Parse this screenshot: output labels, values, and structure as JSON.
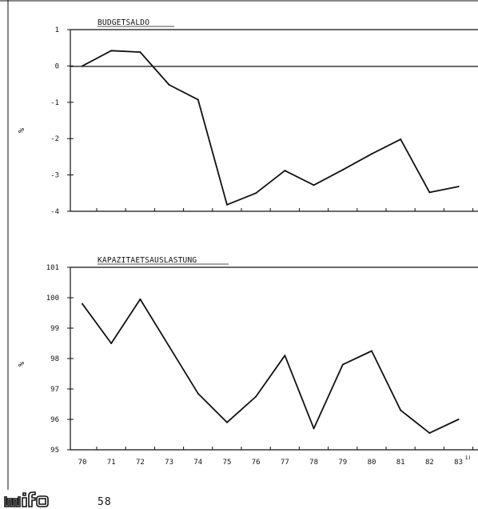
{
  "chart_data": [
    {
      "type": "line",
      "title": "BUDGETSALDO",
      "ylabel": "%",
      "categories": [
        "70",
        "71",
        "72",
        "73",
        "74",
        "75",
        "76",
        "77",
        "78",
        "79",
        "80",
        "81",
        "82",
        "83"
      ],
      "values": [
        0.0,
        0.42,
        0.38,
        -0.52,
        -0.93,
        -3.82,
        -3.5,
        -2.88,
        -3.28,
        -2.86,
        -2.42,
        -2.02,
        -3.48,
        -3.32
      ],
      "yticks": [
        1,
        0,
        -1,
        -2,
        -3,
        -4
      ],
      "ytick_labels": [
        "1",
        "0",
        "-1",
        "-2",
        "-3",
        "-4"
      ],
      "ylim": [
        -4,
        1
      ],
      "zero_line": true
    },
    {
      "type": "line",
      "title": "KAPAZITAETSAUSLASTUNG",
      "ylabel": "%",
      "categories": [
        "70",
        "71",
        "72",
        "73",
        "74",
        "75",
        "76",
        "77",
        "78",
        "79",
        "80",
        "81",
        "82",
        "83"
      ],
      "values": [
        99.8,
        98.5,
        99.95,
        98.4,
        96.85,
        95.9,
        96.75,
        98.1,
        95.7,
        97.8,
        98.25,
        96.3,
        95.55,
        96.0
      ],
      "yticks": [
        101,
        100,
        99,
        98,
        97,
        96,
        95
      ],
      "ytick_labels": [
        "101",
        "100",
        "99",
        "98",
        "97",
        "96",
        "95"
      ],
      "ylim": [
        95,
        101
      ],
      "xtick_labels": [
        "70",
        "71",
        "72",
        "73",
        "74",
        "75",
        "76",
        "77",
        "78",
        "79",
        "80",
        "81",
        "82",
        "83"
      ],
      "xtick_footnote": "1)"
    }
  ],
  "footer": {
    "logo_text": "wifo",
    "page_number": "58"
  }
}
